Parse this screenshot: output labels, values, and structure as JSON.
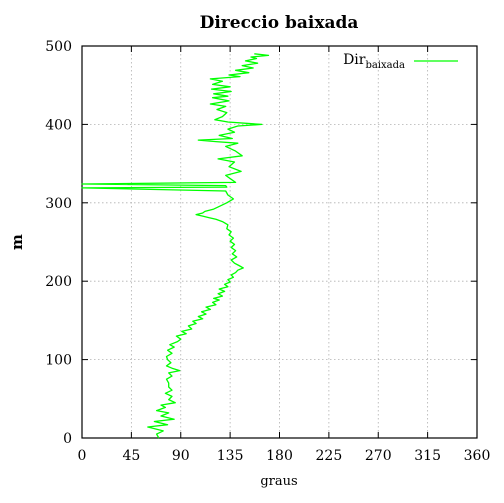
{
  "chart_data": {
    "type": "line",
    "title": "Direccio baixada",
    "xlabel": "graus",
    "ylabel": "m",
    "xlim": [
      0,
      360
    ],
    "ylim": [
      0,
      500
    ],
    "xticks": [
      0,
      45,
      90,
      135,
      180,
      225,
      270,
      315,
      360
    ],
    "yticks": [
      0,
      100,
      200,
      300,
      400,
      500
    ],
    "grid": true,
    "legend_position": "top-right",
    "series": [
      {
        "name_main": "Dir",
        "name_sub": "baixada",
        "color": "#00ff00",
        "points": [
          [
            70,
            0
          ],
          [
            68,
            5
          ],
          [
            74,
            9
          ],
          [
            60,
            14
          ],
          [
            78,
            17
          ],
          [
            66,
            21
          ],
          [
            84,
            24
          ],
          [
            72,
            28
          ],
          [
            79,
            32
          ],
          [
            68,
            35
          ],
          [
            76,
            39
          ],
          [
            72,
            42
          ],
          [
            85,
            45
          ],
          [
            79,
            49
          ],
          [
            82,
            53
          ],
          [
            76,
            57
          ],
          [
            82,
            61
          ],
          [
            79,
            65
          ],
          [
            79,
            70
          ],
          [
            77,
            75
          ],
          [
            82,
            79
          ],
          [
            79,
            83
          ],
          [
            89,
            86
          ],
          [
            82,
            89
          ],
          [
            77,
            92
          ],
          [
            81,
            96
          ],
          [
            78,
            100
          ],
          [
            77,
            104
          ],
          [
            82,
            108
          ],
          [
            78,
            112
          ],
          [
            84,
            116
          ],
          [
            80,
            119
          ],
          [
            87,
            123
          ],
          [
            90,
            126
          ],
          [
            86,
            130
          ],
          [
            95,
            133
          ],
          [
            91,
            136
          ],
          [
            100,
            139
          ],
          [
            97,
            143
          ],
          [
            104,
            146
          ],
          [
            101,
            149
          ],
          [
            110,
            152
          ],
          [
            106,
            155
          ],
          [
            113,
            158
          ],
          [
            109,
            161
          ],
          [
            117,
            164
          ],
          [
            113,
            167
          ],
          [
            122,
            170
          ],
          [
            119,
            173
          ],
          [
            125,
            176
          ],
          [
            120,
            178
          ],
          [
            128,
            181
          ],
          [
            124,
            184
          ],
          [
            130,
            187
          ],
          [
            125,
            190
          ],
          [
            133,
            193
          ],
          [
            130,
            196
          ],
          [
            135,
            199
          ],
          [
            133,
            202
          ],
          [
            138,
            205
          ],
          [
            136,
            208
          ],
          [
            140,
            211
          ],
          [
            142,
            214
          ],
          [
            147,
            217
          ],
          [
            143,
            220
          ],
          [
            139,
            223
          ],
          [
            136,
            227
          ],
          [
            141,
            231
          ],
          [
            137,
            235
          ],
          [
            140,
            239
          ],
          [
            136,
            243
          ],
          [
            139,
            247
          ],
          [
            135,
            251
          ],
          [
            138,
            255
          ],
          [
            134,
            259
          ],
          [
            136,
            263
          ],
          [
            132,
            267
          ],
          [
            133,
            272
          ],
          [
            128,
            276
          ],
          [
            122,
            279
          ],
          [
            116,
            281
          ],
          [
            110,
            283
          ],
          [
            104,
            285
          ],
          [
            110,
            287
          ],
          [
            112,
            289
          ],
          [
            120,
            292
          ],
          [
            126,
            296
          ],
          [
            132,
            300
          ],
          [
            138,
            305
          ],
          [
            133,
            310
          ],
          [
            131,
            315
          ],
          [
            0,
            319
          ],
          [
            132,
            320
          ],
          [
            131,
            322
          ],
          [
            0,
            324
          ],
          [
            140,
            326
          ],
          [
            136,
            330
          ],
          [
            131,
            335
          ],
          [
            145,
            340
          ],
          [
            134,
            346
          ],
          [
            139,
            352
          ],
          [
            124,
            356
          ],
          [
            146,
            360
          ],
          [
            140,
            366
          ],
          [
            131,
            372
          ],
          [
            142,
            376
          ],
          [
            122,
            378
          ],
          [
            106,
            380
          ],
          [
            137,
            382
          ],
          [
            125,
            386
          ],
          [
            139,
            390
          ],
          [
            133,
            394
          ],
          [
            142,
            398
          ],
          [
            164,
            400
          ],
          [
            133,
            403
          ],
          [
            121,
            406
          ],
          [
            128,
            410
          ],
          [
            132,
            415
          ],
          [
            123,
            419
          ],
          [
            131,
            423
          ],
          [
            117,
            426
          ],
          [
            134,
            430
          ],
          [
            119,
            434
          ],
          [
            133,
            436
          ],
          [
            120,
            439
          ],
          [
            136,
            442
          ],
          [
            118,
            445
          ],
          [
            135,
            448
          ],
          [
            119,
            451
          ],
          [
            128,
            455
          ],
          [
            117,
            458
          ],
          [
            144,
            461
          ],
          [
            134,
            463
          ],
          [
            152,
            466
          ],
          [
            140,
            469
          ],
          [
            156,
            472
          ],
          [
            146,
            475
          ],
          [
            160,
            478
          ],
          [
            149,
            481
          ],
          [
            159,
            484
          ],
          [
            154,
            486
          ],
          [
            170,
            488
          ],
          [
            157,
            490
          ]
        ]
      }
    ]
  }
}
